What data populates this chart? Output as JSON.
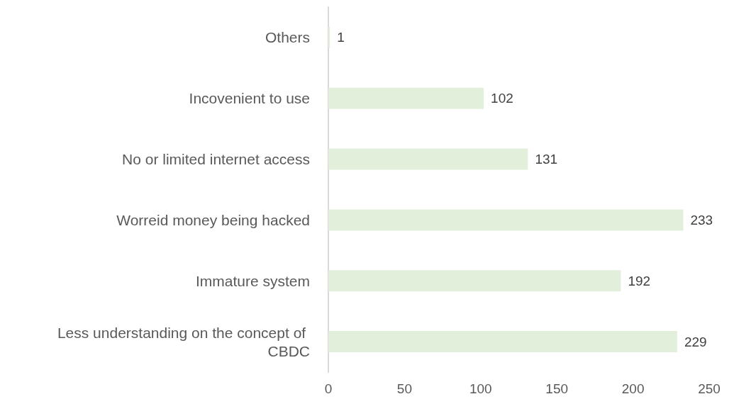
{
  "chart_data": {
    "type": "bar",
    "orientation": "horizontal",
    "categories": [
      "Others",
      "Incovenient to use",
      "No or limited internet access",
      "Worreid money being hacked",
      "Immature system",
      "Less understanding on the concept of CBDC"
    ],
    "values": [
      1,
      102,
      131,
      233,
      192,
      229
    ],
    "color": "#e2efda",
    "xlim": [
      0,
      250
    ],
    "xticks": [
      0,
      50,
      100,
      150,
      200,
      250
    ],
    "data_labels": true
  }
}
